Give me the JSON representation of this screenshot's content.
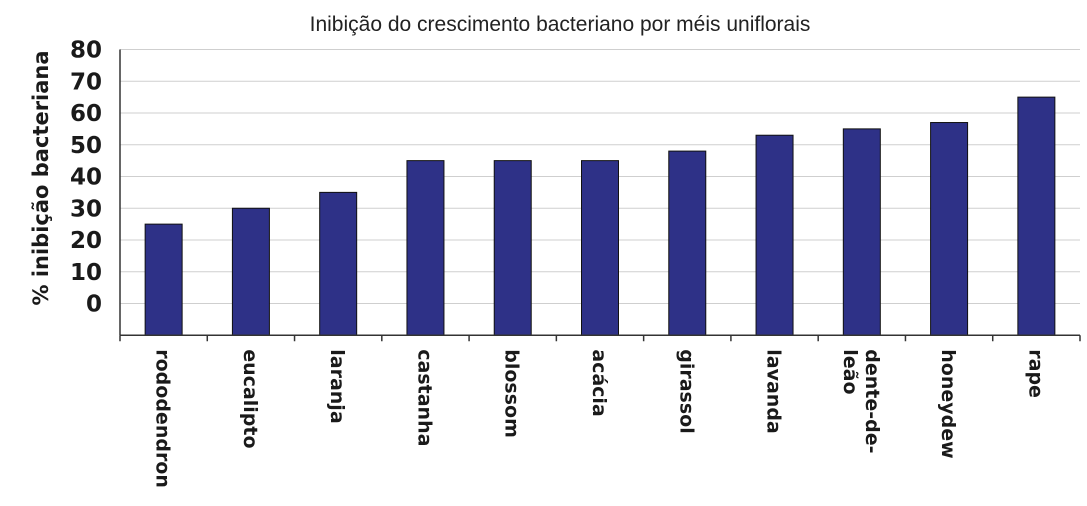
{
  "chart_data": {
    "type": "bar",
    "title": "Inibição do crescimento bacteriano por méis uniflorais",
    "ylabel": "% inibição bacteriana",
    "xlabel": "",
    "yticks": [
      "0",
      "10",
      "20",
      "30",
      "40",
      "50",
      "60",
      "70",
      "80"
    ],
    "ylim": [
      -10,
      80
    ],
    "grid": true,
    "categories": [
      [
        "rododendron"
      ],
      [
        "eucalipto"
      ],
      [
        "laranja"
      ],
      [
        "castanha"
      ],
      [
        "blossom"
      ],
      [
        "acácia"
      ],
      [
        "girassol"
      ],
      [
        "lavanda"
      ],
      [
        "dente-de-",
        "leão"
      ],
      [
        "honeydew"
      ],
      [
        "rape"
      ]
    ],
    "values": [
      25,
      30,
      35,
      45,
      45,
      45,
      48,
      53,
      55,
      57,
      65
    ],
    "bar_color": "#2e3187"
  }
}
